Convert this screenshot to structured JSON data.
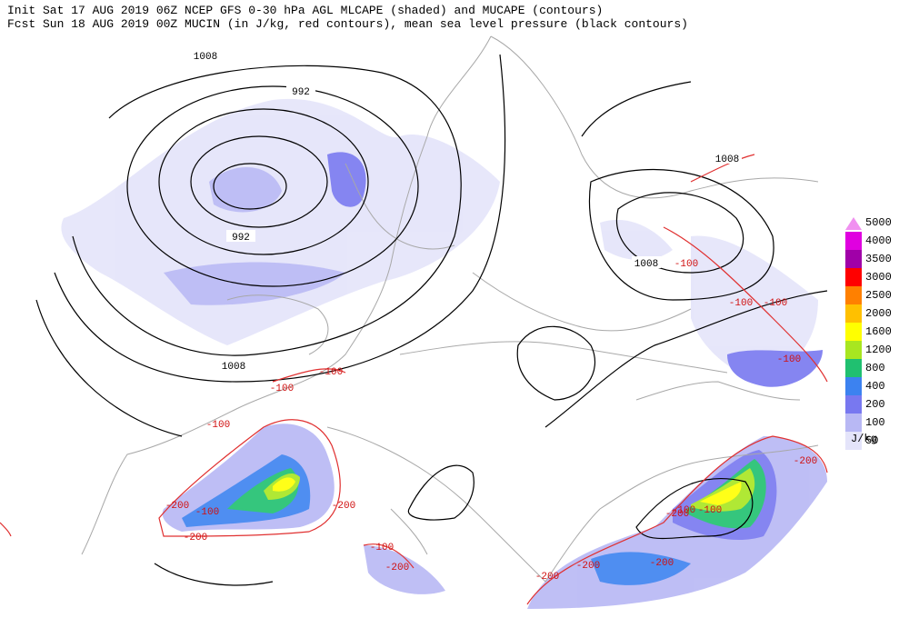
{
  "header": {
    "line1": "Init  Sat 17 AUG 2019 06Z  NCEP GFS 0-30 hPa AGL MLCAPE (shaded) and MUCAPE (contours)",
    "line2": "Fcst Sun 18 AUG 2019 00Z  MUCIN (in J/kg, red contours), mean sea level pressure (black contours)"
  },
  "colorbar": {
    "levels": [
      5000,
      4000,
      3500,
      3000,
      2500,
      2000,
      1600,
      1200,
      800,
      400,
      200,
      100,
      50
    ],
    "colors": [
      "#f090f0",
      "#e000e0",
      "#a000a8",
      "#ff0000",
      "#ff8000",
      "#ffc000",
      "#ffff00",
      "#a8e620",
      "#20c070",
      "#3c82f0",
      "#7878f0",
      "#b8b8f4",
      "#e4e4fa"
    ],
    "unit": "J/kg"
  },
  "pressure_labels": [
    1008,
    992,
    992,
    1008,
    1008,
    1008
  ],
  "cin_labels": [
    -100,
    -100,
    -100,
    -200,
    -100,
    -200,
    -200,
    -100,
    -200,
    -200,
    -200,
    -200,
    -100,
    -200,
    -100,
    -100,
    -100,
    -100,
    -100,
    -200
  ]
}
